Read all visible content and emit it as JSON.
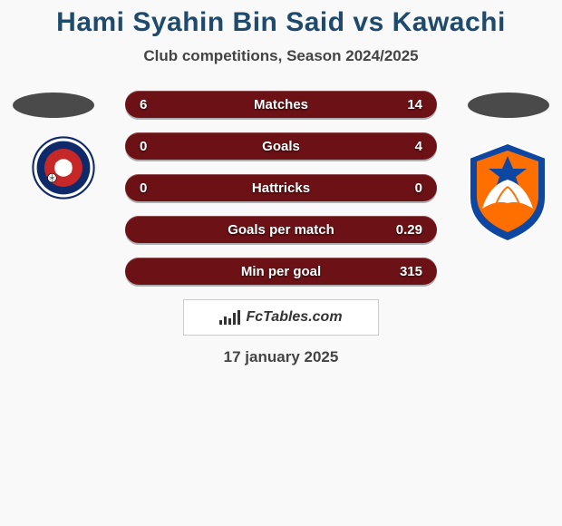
{
  "header": {
    "title": "Hami Syahin Bin Said vs Kawachi",
    "subtitle": "Club competitions, Season 2024/2025"
  },
  "stats": {
    "row_bg_left": "#6c1216",
    "row_bg_right": "#6c1216",
    "rows": [
      {
        "label": "Matches",
        "left": "6",
        "right": "14",
        "fill_left": 0.3
      },
      {
        "label": "Goals",
        "left": "0",
        "right": "4",
        "fill_left": 0.0
      },
      {
        "label": "Hattricks",
        "left": "0",
        "right": "0",
        "fill_left": 0.0
      },
      {
        "label": "Goals per match",
        "left": "",
        "right": "0.29",
        "fill_left": 0.0
      },
      {
        "label": "Min per goal",
        "left": "",
        "right": "315",
        "fill_left": 0.0
      }
    ]
  },
  "footer": {
    "brand": "FcTables.com",
    "date": "17 january 2025"
  },
  "badges": {
    "left": {
      "outer": "#0f2a6b",
      "inner": "#c62828",
      "accent": "#ffffff"
    },
    "right": {
      "outer": "#0d47a1",
      "inner": "#ff6f00",
      "wing": "#ffffff"
    }
  },
  "colors": {
    "bg": "#f9f9f9",
    "title": "#1e4a6d",
    "text": "#444444",
    "oval": "#4a4a4a"
  }
}
